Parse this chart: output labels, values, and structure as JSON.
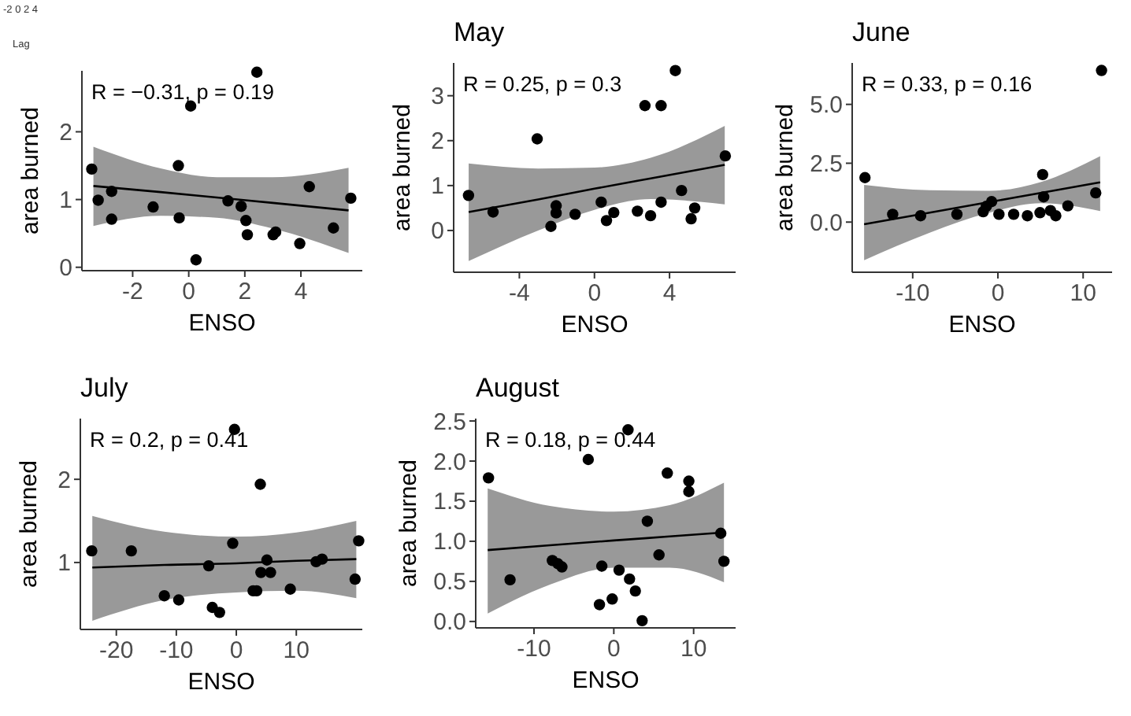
{
  "chart_data": [
    {
      "type": "scatter",
      "xlabel": "ENSO",
      "ylabel": "area burned",
      "xlim": [
        -3.81,
        6.19
      ],
      "ylim": [
        -0.05,
        2.9
      ],
      "xticks": [
        -2,
        0,
        2,
        4
      ],
      "yticks": [
        0,
        1,
        2
      ],
      "annotations": [
        "R = −0.31, p = 0.19",
        "-2 0 2 4",
        "Lag"
      ],
      "series": [
        {
          "type": "scatter",
          "color": "#000000",
          "x": [
            -3.46,
            -3.23,
            -2.75,
            -2.75,
            -1.27,
            -0.37,
            -0.34,
            0.07,
            0.26,
            1.4,
            1.87,
            2.04,
            2.09,
            2.43,
            3.01,
            3.1,
            3.96,
            4.3,
            5.16,
            5.78
          ],
          "values": [
            1.45,
            0.99,
            1.12,
            0.71,
            0.89,
            1.5,
            0.73,
            2.38,
            0.11,
            0.98,
            0.9,
            0.69,
            0.48,
            2.88,
            0.48,
            0.52,
            0.35,
            1.19,
            0.58,
            1.02
          ]
        },
        {
          "type": "line",
          "color": "#000000",
          "x": [
            -3.4,
            -1,
            1,
            3,
            5.7
          ],
          "values": [
            1.2,
            1.11,
            1.03,
            0.95,
            0.84
          ],
          "lower": [
            0.61,
            0.76,
            0.73,
            0.57,
            0.21
          ],
          "upper": [
            1.78,
            1.46,
            1.33,
            1.33,
            1.47
          ]
        }
      ]
    },
    {
      "type": "scatter",
      "title": "May",
      "xlabel": "ENSO",
      "ylabel": "area burned",
      "xlim": [
        -7.5,
        7.52
      ],
      "ylim": [
        -0.93,
        3.73
      ],
      "xticks": [
        -4,
        0,
        4
      ],
      "yticks": [
        0,
        1,
        2,
        3
      ],
      "annotations": [
        "R = 0.25, p = 0.3"
      ],
      "series": [
        {
          "type": "scatter",
          "color": "#000000",
          "x": [
            -6.71,
            -5.4,
            -3.05,
            -2.32,
            -2.04,
            -2.04,
            -1.03,
            0.36,
            0.64,
            1.03,
            2.29,
            2.69,
            2.99,
            3.55,
            3.55,
            4.31,
            4.64,
            5.15,
            5.34,
            6.97
          ],
          "values": [
            0.78,
            0.41,
            2.04,
            0.09,
            0.55,
            0.39,
            0.36,
            0.63,
            0.22,
            0.4,
            0.43,
            2.78,
            0.33,
            2.78,
            0.63,
            3.56,
            0.89,
            0.26,
            0.5,
            1.66
          ]
        },
        {
          "type": "line",
          "color": "#000000",
          "x": [
            -6.7,
            -3,
            0,
            3,
            6.94
          ],
          "values": [
            0.41,
            0.69,
            0.93,
            1.16,
            1.46
          ],
          "lower": [
            -0.68,
            0.0,
            0.46,
            0.7,
            0.58
          ],
          "upper": [
            1.49,
            1.38,
            1.4,
            1.62,
            2.33
          ]
        }
      ]
    },
    {
      "type": "scatter",
      "title": "June",
      "xlabel": "ENSO",
      "ylabel": "area burned",
      "xlim": [
        -17.1,
        13.4
      ],
      "ylim": [
        -2.13,
        6.76
      ],
      "xticks": [
        -10,
        0,
        10
      ],
      "yticks": [
        {
          "value": 0,
          "label": "0.0"
        },
        {
          "value": 2.5,
          "label": "2.5"
        },
        {
          "value": 5,
          "label": "5.0"
        }
      ],
      "annotations": [
        "R = 0.33, p = 0.16"
      ],
      "series": [
        {
          "type": "scatter",
          "color": "#000000",
          "x": [
            -15.6,
            -12.35,
            -9.07,
            -4.81,
            -1.73,
            -1.36,
            -0.74,
            0.12,
            1.85,
            3.46,
            4.94,
            5.25,
            5.37,
            6.17,
            6.79,
            8.21,
            11.48,
            12.16
          ],
          "values": [
            1.89,
            0.33,
            0.27,
            0.33,
            0.44,
            0.67,
            0.87,
            0.33,
            0.33,
            0.27,
            0.4,
            2.02,
            1.07,
            0.49,
            0.27,
            0.69,
            1.24,
            6.44
          ]
        },
        {
          "type": "line",
          "color": "#000000",
          "x": [
            -15.7,
            -8,
            -1,
            5,
            12
          ],
          "values": [
            -0.09,
            0.4,
            0.85,
            1.24,
            1.69
          ],
          "lower": [
            -1.62,
            -0.45,
            0.4,
            0.8,
            0.47
          ],
          "upper": [
            1.58,
            1.35,
            1.33,
            1.7,
            2.8
          ]
        }
      ]
    },
    {
      "type": "scatter",
      "title": "July",
      "xlabel": "ENSO",
      "ylabel": "area burned",
      "xlim": [
        -26,
        21
      ],
      "ylim": [
        0.195,
        2.73
      ],
      "xticks": [
        -20,
        -10,
        0,
        10
      ],
      "yticks": [
        1,
        2
      ],
      "annotations": [
        "R = 0.2, p = 0.41"
      ],
      "series": [
        {
          "type": "scatter",
          "color": "#000000",
          "x": [
            -24.1,
            -17.5,
            -12,
            -9.6,
            -4.6,
            -4,
            -2.8,
            -0.6,
            -0.3,
            2.8,
            3.4,
            4,
            4.1,
            5.1,
            5.7,
            9,
            13.3,
            14.3,
            19.8,
            20.4
          ],
          "values": [
            1.14,
            1.14,
            0.6,
            0.55,
            0.96,
            0.46,
            0.4,
            1.23,
            2.6,
            0.66,
            0.66,
            1.94,
            0.88,
            1.03,
            0.88,
            0.68,
            1.01,
            1.04,
            0.8,
            1.26
          ]
        },
        {
          "type": "line",
          "color": "#000000",
          "x": [
            -24,
            -12,
            0,
            10,
            20
          ],
          "values": [
            0.94,
            0.97,
            0.99,
            1.02,
            1.04
          ],
          "lower": [
            0.3,
            0.55,
            0.64,
            0.66,
            0.57
          ],
          "upper": [
            1.56,
            1.37,
            1.31,
            1.36,
            1.5
          ]
        }
      ]
    },
    {
      "type": "scatter",
      "title": "August",
      "xlabel": "ENSO",
      "ylabel": "area burned",
      "xlim": [
        -17.3,
        15.26
      ],
      "ylim": [
        -0.08,
        2.53
      ],
      "xticks": [
        -10,
        0,
        10
      ],
      "yticks": [
        {
          "value": 0,
          "label": "0.0"
        },
        {
          "value": 0.5,
          "label": "0.5"
        },
        {
          "value": 1,
          "label": "1.0"
        },
        {
          "value": 1.5,
          "label": "1.5"
        },
        {
          "value": 2,
          "label": "2.0"
        },
        {
          "value": 2.5,
          "label": "2.5"
        }
      ],
      "annotations": [
        "R = 0.18, p = 0.44"
      ],
      "series": [
        {
          "type": "scatter",
          "color": "#000000",
          "x": [
            -15.7,
            -13,
            -7.7,
            -7,
            -6.5,
            -3.2,
            -1.8,
            -1.5,
            -0.2,
            0.66,
            1.78,
            1.97,
            2.7,
            3.55,
            4.2,
            5.66,
            6.7,
            9.4,
            9.4,
            13.4,
            13.8
          ],
          "values": [
            1.79,
            0.52,
            0.76,
            0.72,
            0.68,
            2.02,
            0.21,
            0.69,
            0.28,
            0.64,
            2.39,
            0.53,
            0.38,
            0.01,
            1.25,
            0.83,
            1.85,
            1.75,
            1.62,
            1.1,
            0.75
          ]
        },
        {
          "type": "line",
          "color": "#000000",
          "x": [
            -15.8,
            -8,
            0,
            7,
            13.8
          ],
          "values": [
            0.89,
            0.95,
            1.01,
            1.06,
            1.11
          ],
          "lower": [
            0.1,
            0.46,
            0.67,
            0.67,
            0.49
          ],
          "upper": [
            1.66,
            1.44,
            1.37,
            1.45,
            1.73
          ]
        }
      ]
    }
  ]
}
